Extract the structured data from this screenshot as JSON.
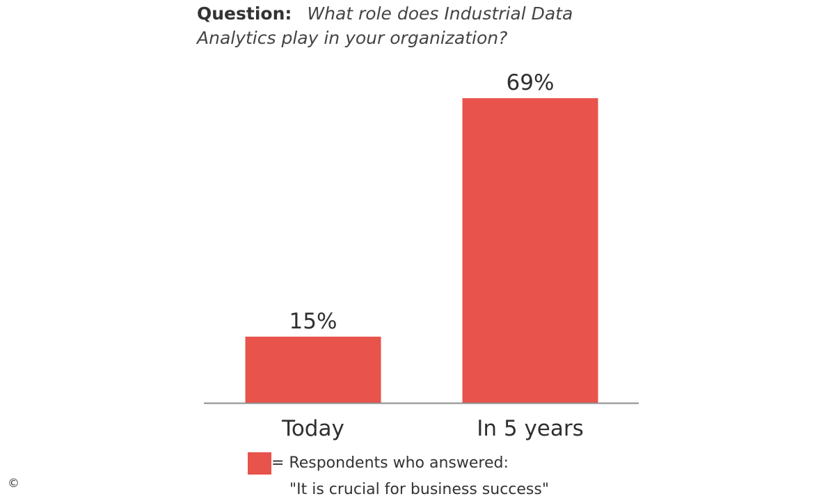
{
  "question": {
    "label": "Question:",
    "text": "What role does Industrial Data Analytics play in your organization?"
  },
  "chart_data": {
    "type": "bar",
    "categories": [
      "Today",
      "In 5 years"
    ],
    "values": [
      15,
      69
    ],
    "value_labels": [
      "15%",
      "69%"
    ],
    "unit": "%",
    "ylim": [
      0,
      70
    ],
    "grid": false,
    "bar_color": "#e8534b",
    "series": [
      {
        "name": "= Respondents who answered: \"It is crucial for business success\"",
        "values": [
          15,
          69
        ]
      }
    ]
  },
  "legend": {
    "line1": "= Respondents who answered:",
    "line2": "\"It is crucial for business success\""
  },
  "copyright_symbol": "©",
  "colors": {
    "bar": "#e8534b",
    "axis": "#8c8c8c",
    "text": "#333333"
  }
}
